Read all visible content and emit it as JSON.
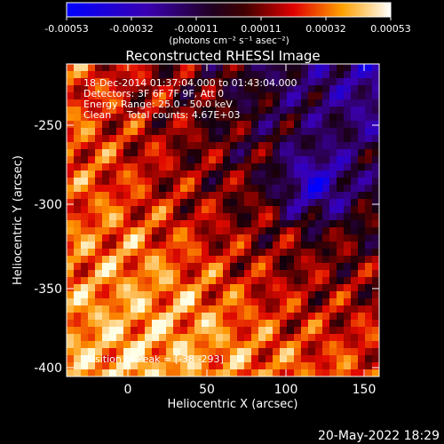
{
  "colorbar": {
    "ticks": [
      "-0.00053",
      "-0.00032",
      "-0.00011",
      "0.00011",
      "0.00032",
      "0.00053"
    ],
    "unit_label": "(photons cm⁻² s⁻¹ asec⁻²)"
  },
  "plot": {
    "title": "Reconstructed RHESSI Image",
    "info_lines": [
      "18-Dec-2014 01:37:04.000 to 01:43:04.000",
      "Detectors: 3F 6F 7F 9F, Att 0",
      "Energy Range: 25.0 - 50.0 keV",
      "Clean     Total counts: 4.67E+03"
    ],
    "peak_label": "Position of Peak = [-38 -293]",
    "xlabel": "Heliocentric X (arcsec)",
    "ylabel": "Heliocentric Y (arcsec)",
    "xticks": [
      "0",
      "50",
      "100",
      "150"
    ],
    "yticks": [
      "-250",
      "-300",
      "-350",
      "-400"
    ]
  },
  "timestamp": "20-May-2022 18:29"
}
